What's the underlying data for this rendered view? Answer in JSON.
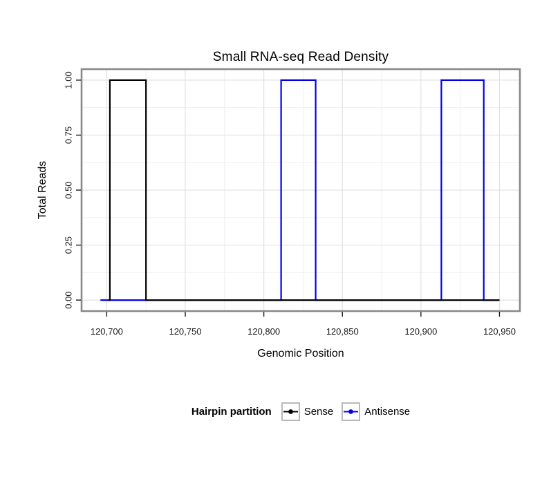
{
  "chart_data": {
    "type": "line",
    "title": "Small RNA-seq Read Density",
    "xlabel": "Genomic Position",
    "ylabel": "Total Reads",
    "xlim": [
      120684,
      120963
    ],
    "ylim": [
      -0.05,
      1.05
    ],
    "x_ticks": [
      120700,
      120750,
      120800,
      120850,
      120900,
      120950
    ],
    "x_tick_labels": [
      "120,700",
      "120,750",
      "120,800",
      "120,850",
      "120,900",
      "120,950"
    ],
    "x_minor_ticks": [
      120725,
      120775,
      120825,
      120875,
      120925
    ],
    "y_ticks": [
      0,
      0.25,
      0.5,
      0.75,
      1
    ],
    "y_tick_labels": [
      "0.00",
      "0.25",
      "0.50",
      "0.75",
      "1.00"
    ],
    "y_minor_ticks": [
      0.125,
      0.375,
      0.625,
      0.875
    ],
    "grid": true,
    "legend_title": "Hairpin partition",
    "legend_position": "bottom",
    "series": [
      {
        "name": "Sense",
        "color": "#000000",
        "baseline": 0,
        "x_range": [
          120701,
          120950
        ],
        "peaks": [
          {
            "x_start": 120702,
            "x_end": 120725,
            "height": 1.0
          }
        ]
      },
      {
        "name": "Antisense",
        "color": "#0000EE",
        "baseline": 0,
        "x_range": [
          120696,
          120950
        ],
        "peaks": [
          {
            "x_start": 120811,
            "x_end": 120833,
            "height": 1.0
          },
          {
            "x_start": 120913,
            "x_end": 120940,
            "height": 1.0
          }
        ]
      }
    ]
  }
}
